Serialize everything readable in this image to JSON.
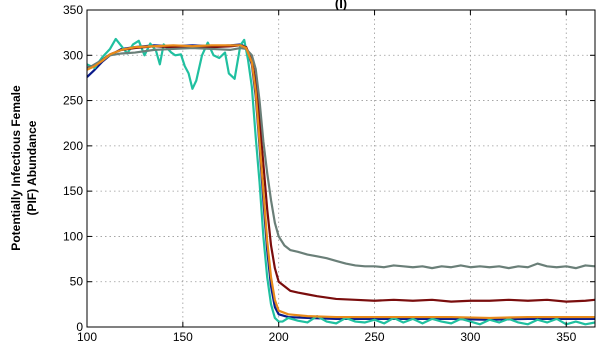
{
  "chart_data": {
    "type": "line",
    "title_fragment": "(I)",
    "xlabel": "",
    "ylabel_line1": "Potentially Infectious Female",
    "ylabel_line2": "(PIF) Abundance",
    "xlim": [
      100,
      365
    ],
    "ylim": [
      0,
      350
    ],
    "x_ticks": [
      100,
      150,
      200,
      250,
      300,
      350
    ],
    "y_ticks": [
      0,
      50,
      100,
      150,
      200,
      250,
      300,
      350
    ],
    "grid": true,
    "legend": "none",
    "series": [
      {
        "color": "#0a1a8a",
        "points": [
          [
            100,
            276
          ],
          [
            104,
            284
          ],
          [
            108,
            293
          ],
          [
            112,
            300
          ],
          [
            118,
            307
          ],
          [
            125,
            309
          ],
          [
            135,
            311
          ],
          [
            145,
            310
          ],
          [
            155,
            311
          ],
          [
            165,
            310
          ],
          [
            175,
            311
          ],
          [
            180,
            312
          ],
          [
            183,
            309
          ],
          [
            186,
            290
          ],
          [
            188,
            255
          ],
          [
            190,
            200
          ],
          [
            192,
            140
          ],
          [
            194,
            85
          ],
          [
            196,
            45
          ],
          [
            198,
            22
          ],
          [
            200,
            14
          ],
          [
            205,
            11
          ],
          [
            215,
            10
          ],
          [
            230,
            9
          ],
          [
            250,
            9
          ],
          [
            270,
            9
          ],
          [
            290,
            9
          ],
          [
            310,
            8
          ],
          [
            330,
            9
          ],
          [
            350,
            9
          ],
          [
            365,
            9
          ]
        ]
      },
      {
        "color": "#20c0a0",
        "points": [
          [
            100,
            290
          ],
          [
            104,
            286
          ],
          [
            108,
            298
          ],
          [
            112,
            307
          ],
          [
            115,
            318
          ],
          [
            118,
            310
          ],
          [
            121,
            302
          ],
          [
            124,
            312
          ],
          [
            127,
            316
          ],
          [
            130,
            300
          ],
          [
            133,
            313
          ],
          [
            136,
            305
          ],
          [
            138,
            290
          ],
          [
            140,
            312
          ],
          [
            144,
            303
          ],
          [
            146,
            300
          ],
          [
            149,
            301
          ],
          [
            151,
            288
          ],
          [
            153,
            280
          ],
          [
            155,
            263
          ],
          [
            157,
            272
          ],
          [
            160,
            300
          ],
          [
            163,
            314
          ],
          [
            166,
            300
          ],
          [
            169,
            297
          ],
          [
            172,
            303
          ],
          [
            174,
            280
          ],
          [
            177,
            274
          ],
          [
            180,
            311
          ],
          [
            182,
            317
          ],
          [
            184,
            295
          ],
          [
            186,
            265
          ],
          [
            188,
            210
          ],
          [
            190,
            160
          ],
          [
            192,
            100
          ],
          [
            194,
            55
          ],
          [
            196,
            25
          ],
          [
            198,
            10
          ],
          [
            200,
            6
          ],
          [
            202,
            6
          ],
          [
            205,
            10
          ],
          [
            210,
            7
          ],
          [
            215,
            5
          ],
          [
            220,
            12
          ],
          [
            225,
            6
          ],
          [
            230,
            4
          ],
          [
            235,
            10
          ],
          [
            240,
            6
          ],
          [
            245,
            5
          ],
          [
            250,
            8
          ],
          [
            255,
            4
          ],
          [
            260,
            10
          ],
          [
            265,
            5
          ],
          [
            270,
            9
          ],
          [
            275,
            4
          ],
          [
            280,
            9
          ],
          [
            285,
            6
          ],
          [
            290,
            4
          ],
          [
            295,
            9
          ],
          [
            300,
            6
          ],
          [
            305,
            3
          ],
          [
            310,
            8
          ],
          [
            315,
            5
          ],
          [
            320,
            9
          ],
          [
            325,
            5
          ],
          [
            330,
            3
          ],
          [
            335,
            8
          ],
          [
            340,
            5
          ],
          [
            345,
            9
          ],
          [
            350,
            3
          ],
          [
            355,
            6
          ],
          [
            360,
            3
          ],
          [
            365,
            5
          ]
        ]
      },
      {
        "color": "#7a0d0d",
        "points": [
          [
            100,
            286
          ],
          [
            104,
            289
          ],
          [
            108,
            295
          ],
          [
            112,
            301
          ],
          [
            118,
            306
          ],
          [
            125,
            308
          ],
          [
            135,
            310
          ],
          [
            145,
            309
          ],
          [
            155,
            310
          ],
          [
            165,
            309
          ],
          [
            175,
            310
          ],
          [
            180,
            311
          ],
          [
            183,
            309
          ],
          [
            186,
            295
          ],
          [
            188,
            270
          ],
          [
            190,
            230
          ],
          [
            192,
            180
          ],
          [
            194,
            130
          ],
          [
            196,
            90
          ],
          [
            198,
            65
          ],
          [
            200,
            50
          ],
          [
            203,
            45
          ],
          [
            206,
            40
          ],
          [
            210,
            38
          ],
          [
            215,
            36
          ],
          [
            220,
            34
          ],
          [
            230,
            31
          ],
          [
            240,
            30
          ],
          [
            250,
            29
          ],
          [
            260,
            30
          ],
          [
            270,
            29
          ],
          [
            280,
            30
          ],
          [
            290,
            28
          ],
          [
            300,
            29
          ],
          [
            310,
            29
          ],
          [
            320,
            30
          ],
          [
            330,
            29
          ],
          [
            340,
            30
          ],
          [
            350,
            28
          ],
          [
            360,
            29
          ],
          [
            365,
            30
          ]
        ]
      },
      {
        "color": "#6a7f78",
        "points": [
          [
            100,
            285
          ],
          [
            104,
            290
          ],
          [
            108,
            295
          ],
          [
            112,
            300
          ],
          [
            118,
            302
          ],
          [
            125,
            303
          ],
          [
            135,
            306
          ],
          [
            145,
            307
          ],
          [
            155,
            308
          ],
          [
            165,
            307
          ],
          [
            175,
            306
          ],
          [
            180,
            308
          ],
          [
            183,
            307
          ],
          [
            186,
            300
          ],
          [
            188,
            285
          ],
          [
            190,
            250
          ],
          [
            192,
            205
          ],
          [
            194,
            170
          ],
          [
            196,
            140
          ],
          [
            198,
            115
          ],
          [
            200,
            100
          ],
          [
            203,
            90
          ],
          [
            206,
            85
          ],
          [
            210,
            83
          ],
          [
            215,
            80
          ],
          [
            220,
            78
          ],
          [
            225,
            76
          ],
          [
            230,
            73
          ],
          [
            235,
            70
          ],
          [
            240,
            68
          ],
          [
            245,
            67
          ],
          [
            250,
            67
          ],
          [
            255,
            66
          ],
          [
            260,
            68
          ],
          [
            265,
            67
          ],
          [
            270,
            66
          ],
          [
            275,
            67
          ],
          [
            280,
            65
          ],
          [
            285,
            67
          ],
          [
            290,
            66
          ],
          [
            295,
            68
          ],
          [
            300,
            66
          ],
          [
            305,
            67
          ],
          [
            310,
            66
          ],
          [
            315,
            67
          ],
          [
            320,
            65
          ],
          [
            325,
            67
          ],
          [
            330,
            66
          ],
          [
            335,
            70
          ],
          [
            340,
            67
          ],
          [
            345,
            66
          ],
          [
            350,
            67
          ],
          [
            355,
            65
          ],
          [
            360,
            68
          ],
          [
            365,
            67
          ]
        ]
      },
      {
        "color": "#e88a1a",
        "points": [
          [
            100,
            284
          ],
          [
            104,
            288
          ],
          [
            108,
            294
          ],
          [
            112,
            301
          ],
          [
            118,
            306
          ],
          [
            125,
            309
          ],
          [
            135,
            310
          ],
          [
            145,
            311
          ],
          [
            155,
            310
          ],
          [
            165,
            311
          ],
          [
            175,
            311
          ],
          [
            180,
            311
          ],
          [
            183,
            308
          ],
          [
            186,
            292
          ],
          [
            188,
            260
          ],
          [
            190,
            205
          ],
          [
            192,
            150
          ],
          [
            194,
            95
          ],
          [
            196,
            55
          ],
          [
            198,
            30
          ],
          [
            200,
            18
          ],
          [
            205,
            14
          ],
          [
            215,
            12
          ],
          [
            230,
            11
          ],
          [
            250,
            11
          ],
          [
            270,
            11
          ],
          [
            290,
            11
          ],
          [
            310,
            10
          ],
          [
            330,
            11
          ],
          [
            350,
            11
          ],
          [
            365,
            11
          ]
        ]
      }
    ]
  }
}
